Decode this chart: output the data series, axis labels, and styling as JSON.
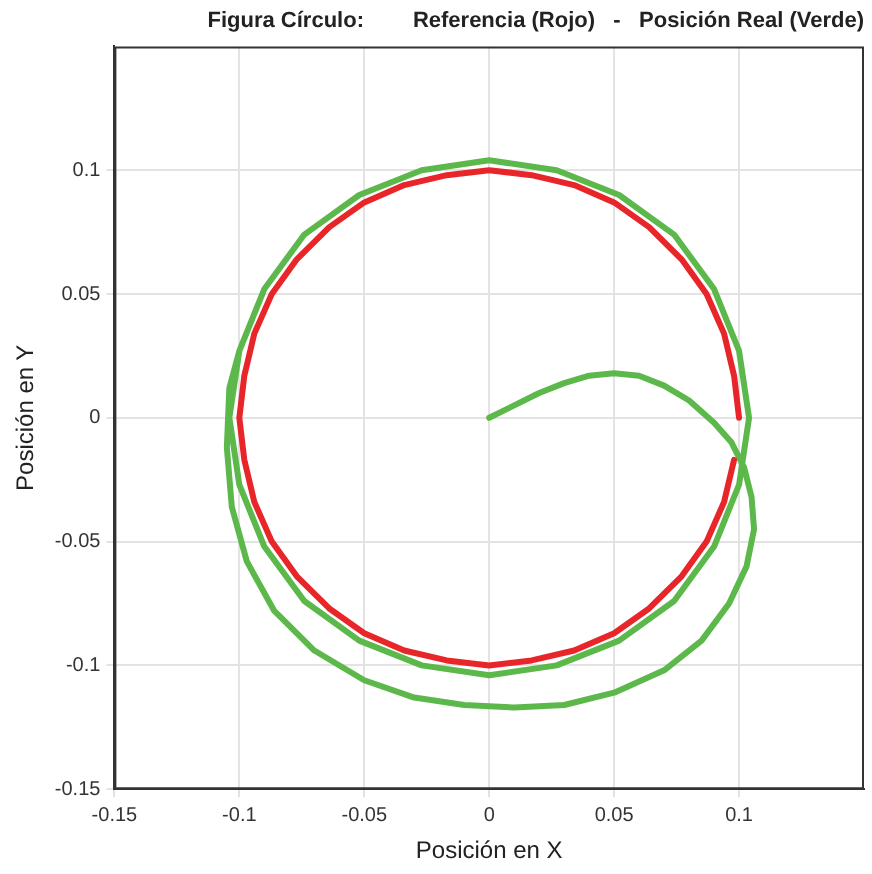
{
  "chart_data": {
    "type": "line",
    "title": "Figura Círculo:        Referencia (Rojo)   -   Posición Real (Verde)",
    "xlabel": "Posición en X",
    "ylabel": "Posición en Y",
    "xlim": [
      -0.15,
      0.15
    ],
    "ylim": [
      -0.15,
      0.15
    ],
    "xticks": [
      -0.15,
      -0.1,
      -0.05,
      0,
      0.05,
      0.1
    ],
    "yticks": [
      -0.15,
      -0.1,
      -0.05,
      0,
      0.05,
      0.1
    ],
    "grid": true,
    "legend": false,
    "marker": "none",
    "line_style": "solid",
    "series": [
      {
        "color": "#e8262a",
        "x": [
          0.1,
          0.098,
          0.094,
          0.087,
          0.077,
          0.064,
          0.05,
          0.034,
          0.017,
          0,
          -0.017,
          -0.034,
          -0.05,
          -0.064,
          -0.077,
          -0.087,
          -0.094,
          -0.098,
          -0.1,
          -0.098,
          -0.094,
          -0.087,
          -0.077,
          -0.064,
          -0.05,
          -0.034,
          -0.017,
          0,
          0.017,
          0.034,
          0.05,
          0.064,
          0.077,
          0.087,
          0.094,
          0.098
        ],
        "values": [
          0,
          0.017,
          0.034,
          0.05,
          0.064,
          0.077,
          0.087,
          0.094,
          0.098,
          0.1,
          0.098,
          0.094,
          0.087,
          0.077,
          0.064,
          0.05,
          0.034,
          0.017,
          0,
          -0.017,
          -0.034,
          -0.05,
          -0.064,
          -0.077,
          -0.087,
          -0.094,
          -0.098,
          -0.1,
          -0.098,
          -0.094,
          -0.087,
          -0.077,
          -0.064,
          -0.05,
          -0.034,
          -0.017
        ]
      },
      {
        "color": "#5cb84a",
        "x": [
          0,
          0.01,
          0.02,
          0.03,
          0.04,
          0.05,
          0.06,
          0.07,
          0.08,
          0.09,
          0.097,
          0.102,
          0.105,
          0.106,
          0.103,
          0.096,
          0.085,
          0.07,
          0.05,
          0.03,
          0.01,
          -0.01,
          -0.03,
          -0.05,
          -0.07,
          -0.086,
          -0.097,
          -0.103,
          -0.105,
          -0.104,
          -0.1,
          -0.09,
          -0.074,
          -0.052,
          -0.027,
          0,
          0.027,
          0.052,
          0.074,
          0.09,
          0.1,
          0.104,
          0.1,
          0.09,
          0.074,
          0.052,
          0.027,
          0,
          -0.027,
          -0.052,
          -0.074,
          -0.09,
          -0.1,
          -0.104,
          -0.1
        ],
        "values": [
          0,
          0.005,
          0.01,
          0.014,
          0.017,
          0.018,
          0.017,
          0.013,
          0.007,
          -0.002,
          -0.01,
          -0.02,
          -0.032,
          -0.045,
          -0.06,
          -0.075,
          -0.09,
          -0.102,
          -0.111,
          -0.116,
          -0.117,
          -0.116,
          -0.113,
          -0.106,
          -0.094,
          -0.078,
          -0.058,
          -0.036,
          -0.012,
          0.012,
          0.027,
          0.052,
          0.074,
          0.09,
          0.1,
          0.104,
          0.1,
          0.09,
          0.074,
          0.052,
          0.027,
          0,
          -0.027,
          -0.052,
          -0.074,
          -0.09,
          -0.1,
          -0.104,
          -0.1,
          -0.09,
          -0.074,
          -0.052,
          -0.027,
          0,
          0.027
        ]
      }
    ]
  }
}
